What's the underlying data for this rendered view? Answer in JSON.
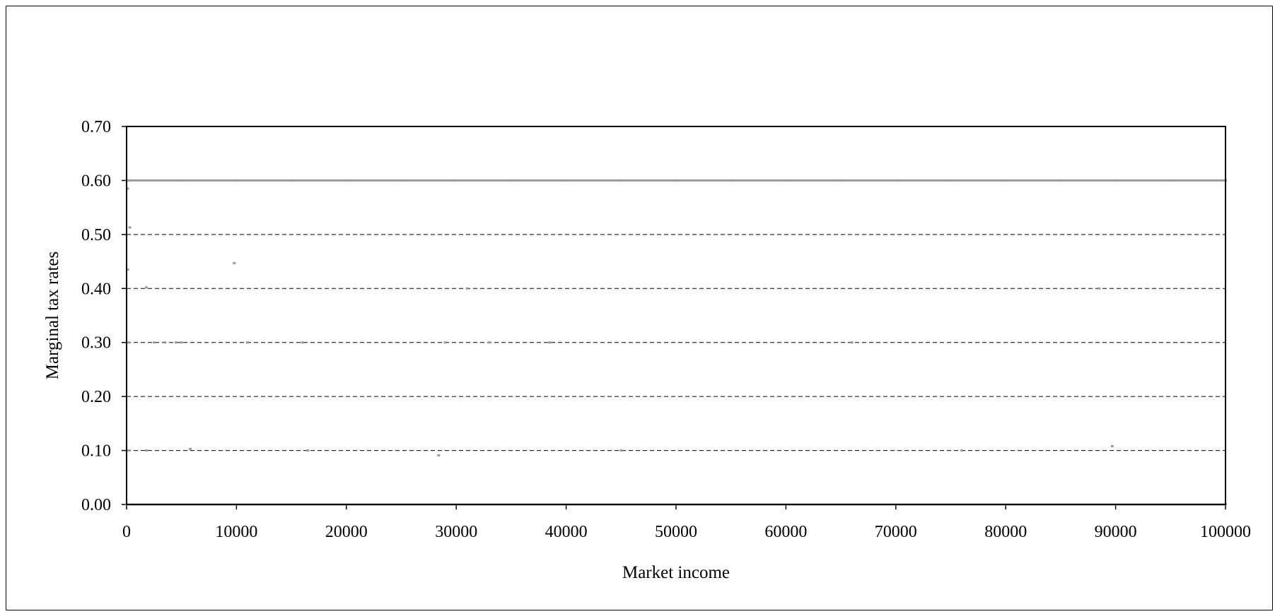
{
  "chart_data": {
    "type": "scatter",
    "title": "",
    "xlabel": "Market income",
    "ylabel": "Marginal tax rates",
    "xlim": [
      0,
      100000
    ],
    "ylim": [
      0,
      0.7
    ],
    "x_ticks": [
      "0",
      "10000",
      "20000",
      "30000",
      "40000",
      "50000",
      "60000",
      "70000",
      "80000",
      "90000",
      "100000"
    ],
    "y_ticks": [
      "0.00",
      "0.10",
      "0.20",
      "0.30",
      "0.40",
      "0.50",
      "0.60",
      "0.70"
    ],
    "grid": "horizontal dashed",
    "legend": "none",
    "colors": {
      "points": "#9a9a9a",
      "axes": "#000000",
      "grid": "#000000"
    },
    "series": [
      {
        "points": [
          [
            0,
            0.6
          ],
          [
            5000,
            0.6
          ],
          [
            10000,
            0.6
          ],
          [
            15000,
            0.6
          ],
          [
            20000,
            0.6
          ],
          [
            25000,
            0.6
          ],
          [
            30000,
            0.6
          ],
          [
            35000,
            0.6
          ],
          [
            40000,
            0.6
          ],
          [
            45000,
            0.6
          ],
          [
            50000,
            0.6
          ],
          [
            55000,
            0.6
          ],
          [
            60000,
            0.6
          ],
          [
            65000,
            0.6
          ],
          [
            70000,
            0.6
          ],
          [
            75000,
            0.6
          ],
          [
            80000,
            0.6
          ],
          [
            85000,
            0.6
          ],
          [
            90000,
            0.6
          ],
          [
            95000,
            0.6
          ],
          [
            100000,
            0.6
          ],
          [
            0,
            0.0
          ],
          [
            5000,
            0.0
          ],
          [
            10000,
            0.0
          ],
          [
            15000,
            0.0
          ],
          [
            20000,
            0.0
          ],
          [
            25000,
            0.0
          ],
          [
            30000,
            0.0
          ],
          [
            35000,
            0.0
          ],
          [
            40000,
            0.0
          ],
          [
            45000,
            0.0
          ],
          [
            50000,
            0.0
          ],
          [
            55000,
            0.0
          ],
          [
            60000,
            0.0
          ],
          [
            65000,
            0.0
          ],
          [
            70000,
            0.0
          ],
          [
            75000,
            0.0
          ],
          [
            80000,
            0.0
          ],
          [
            85000,
            0.0
          ],
          [
            90000,
            0.0
          ],
          [
            95000,
            0.0
          ],
          [
            100000,
            0.0
          ],
          [
            100,
            0.585
          ],
          [
            300,
            0.513
          ],
          [
            100,
            0.435
          ],
          [
            1800,
            0.402
          ],
          [
            9800,
            0.447
          ],
          [
            200,
            0.3
          ],
          [
            2500,
            0.3
          ],
          [
            3500,
            0.3
          ],
          [
            4500,
            0.3
          ],
          [
            5000,
            0.3
          ],
          [
            11000,
            0.3
          ],
          [
            16000,
            0.3
          ],
          [
            29000,
            0.3
          ],
          [
            33000,
            0.3
          ],
          [
            38500,
            0.3
          ],
          [
            66000,
            0.3
          ],
          [
            200,
            0.1
          ],
          [
            1800,
            0.1
          ],
          [
            5800,
            0.103
          ],
          [
            28400,
            0.091
          ],
          [
            76000,
            0.1
          ],
          [
            89700,
            0.108
          ],
          [
            88500,
            0.4
          ],
          [
            31000,
            0.4
          ],
          [
            45000,
            0.1
          ],
          [
            16500,
            0.1
          ]
        ]
      }
    ]
  }
}
